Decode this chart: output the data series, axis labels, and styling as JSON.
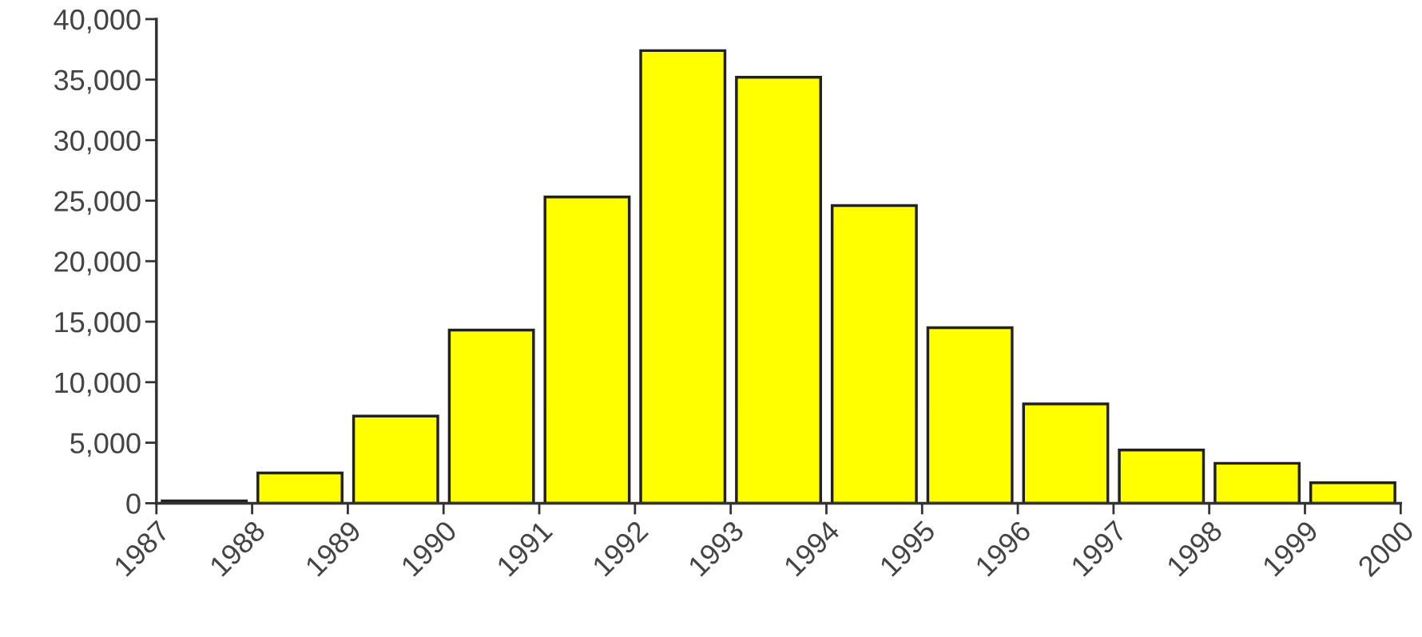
{
  "chart_data": {
    "type": "histogram",
    "bins": [
      1987,
      1988,
      1989,
      1990,
      1991,
      1992,
      1993,
      1994,
      1995,
      1996,
      1997,
      1998,
      1999,
      2000
    ],
    "values": [
      200,
      2500,
      7200,
      14300,
      25300,
      37400,
      35200,
      24600,
      14500,
      8200,
      4400,
      3300,
      1700
    ],
    "color": "#ffff00",
    "xlim": [
      1987,
      2000
    ],
    "xticks": [
      1987,
      1988,
      1989,
      1990,
      1991,
      1992,
      1993,
      1994,
      1995,
      1996,
      1997,
      1998,
      1999,
      2000
    ],
    "ylim": [
      0,
      40000
    ],
    "yticks": [
      {
        "value": 0,
        "label": "0"
      },
      {
        "value": 5000,
        "label": "5,000"
      },
      {
        "value": 10000,
        "label": "10,000"
      },
      {
        "value": 15000,
        "label": "15,000"
      },
      {
        "value": 20000,
        "label": "20,000"
      },
      {
        "value": 25000,
        "label": "25,000"
      },
      {
        "value": 30000,
        "label": "30,000"
      },
      {
        "value": 35000,
        "label": "35,000"
      },
      {
        "value": 40000,
        "label": "40,000"
      }
    ],
    "grid": false
  }
}
